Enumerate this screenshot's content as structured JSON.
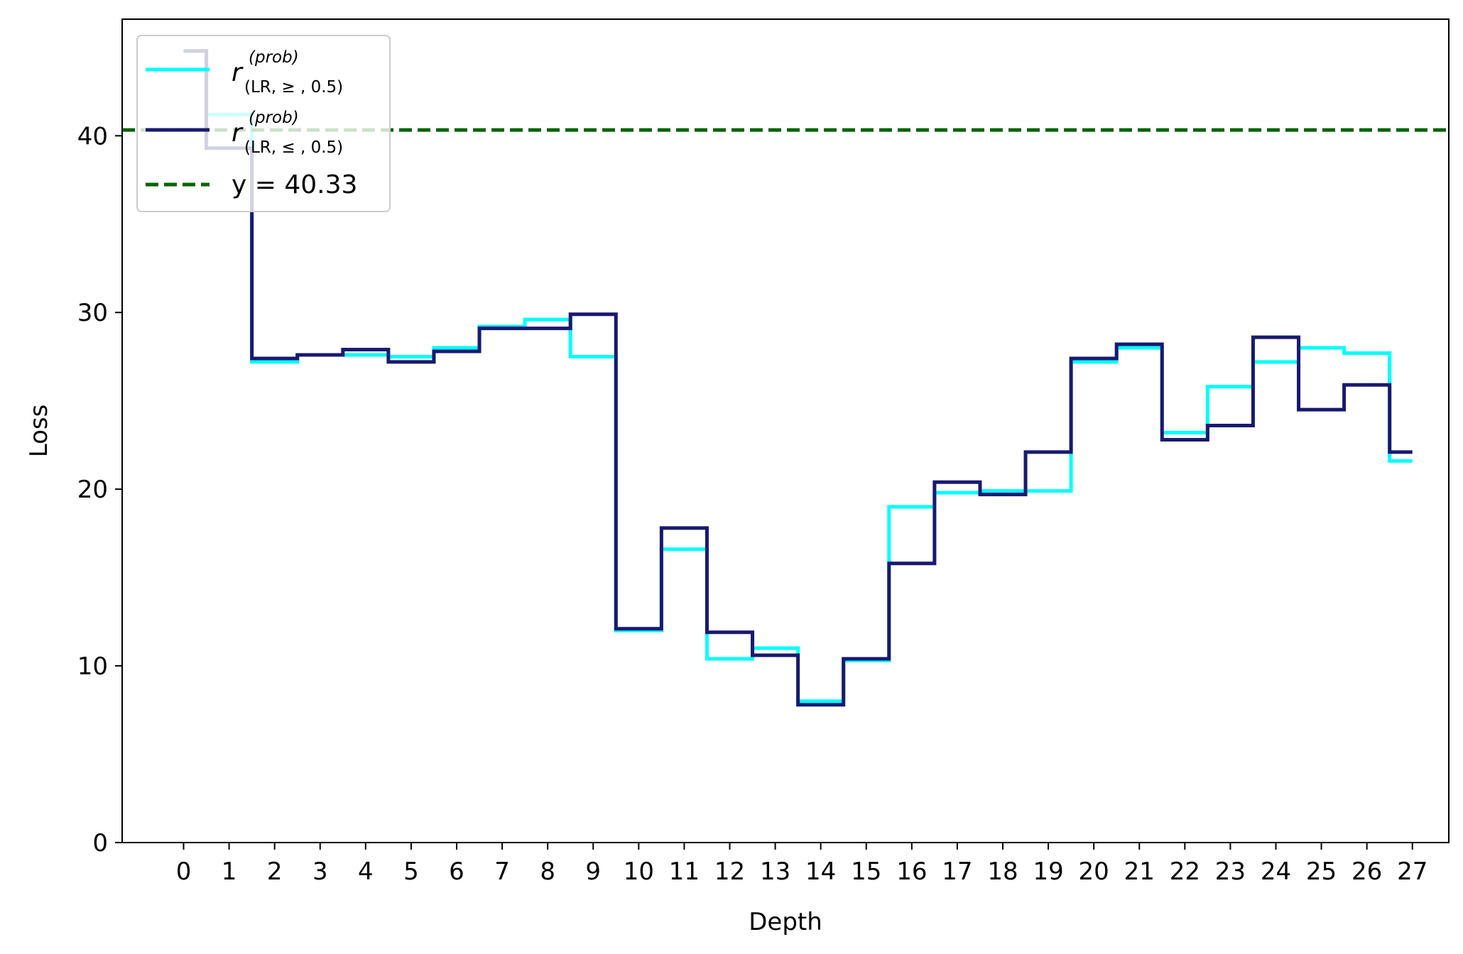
{
  "chart_data": {
    "type": "line",
    "step": "mid",
    "xlabel": "Depth",
    "ylabel": "Loss",
    "x": [
      0,
      1,
      2,
      3,
      4,
      5,
      6,
      7,
      8,
      9,
      10,
      11,
      12,
      13,
      14,
      15,
      16,
      17,
      18,
      19,
      20,
      21,
      22,
      23,
      24,
      25,
      26,
      27
    ],
    "xlim": [
      -1.35,
      27.8
    ],
    "ylim": [
      0,
      46.6
    ],
    "yticks": [
      0,
      10,
      20,
      30,
      40
    ],
    "grid": false,
    "legend_position": "upper left",
    "series": [
      {
        "name_base": "r",
        "name_sup": "(prob)",
        "name_sub": "(LR, ≥ , 0.5)",
        "color": "#00ffff",
        "values": [
          44.8,
          41.2,
          27.2,
          27.6,
          27.6,
          27.5,
          28.0,
          29.2,
          29.6,
          27.5,
          12.0,
          16.6,
          10.4,
          11.0,
          8.0,
          10.3,
          19.0,
          19.8,
          19.9,
          19.9,
          27.2,
          28.0,
          23.2,
          25.8,
          27.2,
          28.0,
          27.7,
          21.6
        ]
      },
      {
        "name_base": "r",
        "name_sup": "(prob)",
        "name_sub": "(LR, ≤ , 0.5)",
        "color": "#191970",
        "values": [
          44.8,
          39.3,
          27.4,
          27.6,
          27.9,
          27.2,
          27.8,
          29.1,
          29.1,
          29.9,
          12.1,
          17.8,
          11.9,
          10.6,
          7.8,
          10.4,
          15.8,
          20.4,
          19.7,
          22.1,
          27.4,
          28.2,
          22.8,
          23.6,
          28.6,
          24.5,
          25.9,
          22.1
        ]
      }
    ],
    "hline": {
      "y": 40.33,
      "label": "y = 40.33",
      "color": "#006400"
    }
  }
}
